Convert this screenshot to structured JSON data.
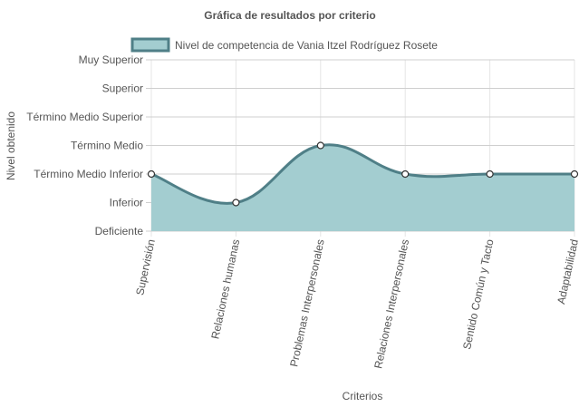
{
  "chart_data": {
    "type": "area",
    "title": "Gráfica de resultados por criterio",
    "xlabel": "Criterios",
    "ylabel": "Nivel obtenido",
    "categories": [
      "Supervisión",
      "Relaciones humanas",
      "Problemas Interpersonales",
      "Relaciones Interpersonales",
      "Sentido Común y Tacto",
      "Adaptabilidad"
    ],
    "y_levels": [
      "Deficiente",
      "Inferior",
      "Término Medio Inferior",
      "Término Medio",
      "Término Medio Superior",
      "Superior",
      "Muy Superior"
    ],
    "ylim": [
      0,
      6
    ],
    "grid": true,
    "legend_position": "top",
    "series": [
      {
        "name": "Nivel de competencia de Vania Itzel Rodríguez Rosete",
        "values": [
          2,
          1,
          3,
          2,
          2,
          2
        ],
        "line_color": "#4f7f87",
        "fill_color": "#a3cdd0"
      }
    ]
  }
}
